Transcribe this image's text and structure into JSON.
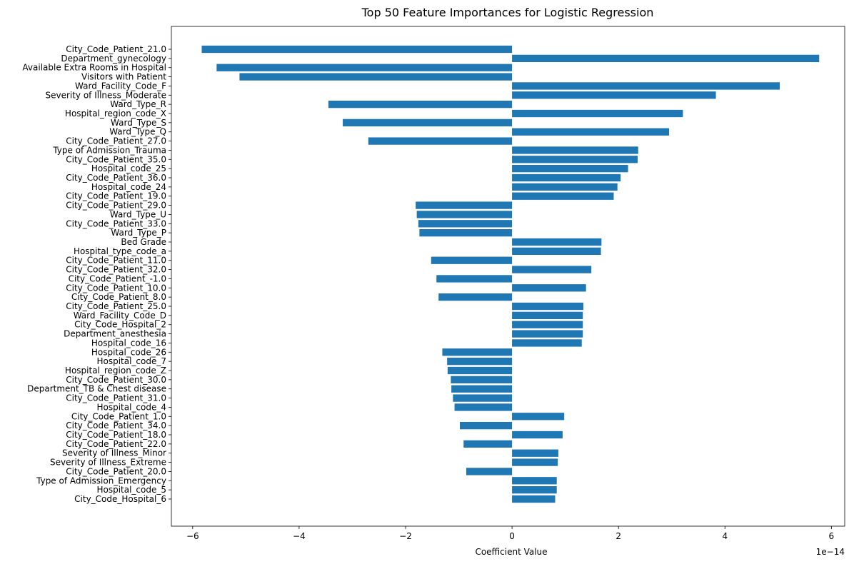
{
  "chart_data": {
    "type": "bar",
    "orientation": "horizontal",
    "title": "Top 50 Feature Importances for Logistic Regression",
    "xlabel": "Coefficient Value",
    "ylabel": "",
    "scale_note": "1e−14",
    "xlim": [
      -6.4,
      6.25
    ],
    "xticks": [
      -6,
      -4,
      -2,
      0,
      2,
      4,
      6
    ],
    "xtick_labels": [
      "−6",
      "−4",
      "−2",
      "0",
      "2",
      "4",
      "6"
    ],
    "grid": false,
    "color": "#1f77b4",
    "categories": [
      "City_Code_Patient_21.0",
      "Department_gynecology",
      "Available Extra Rooms in Hospital",
      "Visitors with Patient",
      "Ward_Facility_Code_F",
      "Severity of Illness_Moderate",
      "Ward_Type_R",
      "Hospital_region_code_X",
      "Ward_Type_S",
      "Ward_Type_Q",
      "City_Code_Patient_27.0",
      "Type of Admission_Trauma",
      "City_Code_Patient_35.0",
      "Hospital_code_25",
      "City_Code_Patient_36.0",
      "Hospital_code_24",
      "City_Code_Patient_19.0",
      "City_Code_Patient_29.0",
      "Ward_Type_U",
      "City_Code_Patient_33.0",
      "Ward_Type_P",
      "Bed Grade",
      "Hospital_type_code_a",
      "City_Code_Patient_11.0",
      "City_Code_Patient_32.0",
      "City_Code_Patient_-1.0",
      "City_Code_Patient_10.0",
      "City_Code_Patient_8.0",
      "City_Code_Patient_25.0",
      "Ward_Facility_Code_D",
      "City_Code_Hospital_2",
      "Department_anesthesia",
      "Hospital_code_16",
      "Hospital_code_26",
      "Hospital_code_7",
      "Hospital_region_code_Z",
      "City_Code_Patient_30.0",
      "Department_TB & Chest disease",
      "City_Code_Patient_31.0",
      "Hospital_code_4",
      "City_Code_Patient_1.0",
      "City_Code_Patient_34.0",
      "City_Code_Patient_18.0",
      "City_Code_Patient_22.0",
      "Severity of Illness_Minor",
      "Severity of Illness_Extreme",
      "City_Code_Patient_20.0",
      "Type of Admission_Emergency",
      "Hospital_code_5",
      "City_Code_Hospital_6"
    ],
    "values": [
      -5.83,
      5.77,
      -5.55,
      -5.12,
      5.03,
      3.83,
      -3.45,
      3.21,
      -3.18,
      2.95,
      -2.7,
      2.37,
      2.36,
      2.18,
      2.04,
      1.98,
      1.91,
      -1.81,
      -1.79,
      -1.76,
      -1.74,
      1.68,
      1.67,
      -1.52,
      1.49,
      -1.42,
      1.39,
      -1.38,
      1.34,
      1.33,
      1.33,
      1.33,
      1.31,
      -1.31,
      -1.22,
      -1.21,
      -1.15,
      -1.14,
      -1.11,
      -1.08,
      0.98,
      -0.98,
      0.95,
      -0.91,
      0.87,
      0.86,
      -0.86,
      0.84,
      0.84,
      0.81
    ]
  }
}
